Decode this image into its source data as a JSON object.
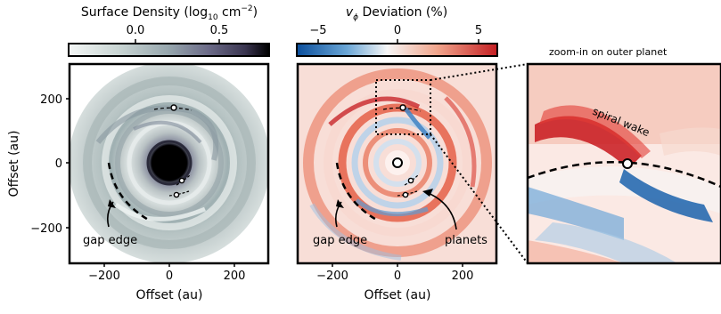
{
  "panel_left": {
    "colorbar_title": "Surface Density (log",
    "colorbar_title_sub": "10",
    "colorbar_title_unit": " cm",
    "colorbar_title_sup": "−2",
    "colorbar_title_end": ")",
    "colorbar_ticks": [
      "0.0",
      "0.5"
    ],
    "colormap": [
      "#f4f7f6",
      "#c9d5d3",
      "#96a6ad",
      "#6b6a87",
      "#3a3550",
      "#000000"
    ],
    "xlabel": "Offset (au)",
    "ylabel": "Offset (au)",
    "xticks": [
      "−200",
      "0",
      "200"
    ],
    "yticks": [
      "200",
      "0",
      "−200"
    ],
    "annotation_gap": "gap edge"
  },
  "panel_middle": {
    "colorbar_title_symbol": "v",
    "colorbar_title_sub": "ϕ",
    "colorbar_title_rest": " Deviation (%)",
    "colorbar_ticks": [
      "−5",
      "0",
      "5"
    ],
    "colormap": [
      "#0b4f9c",
      "#6aa6d6",
      "#f6f6f6",
      "#f1a58c",
      "#c41e22"
    ],
    "xlabel": "Offset (au)",
    "xticks": [
      "−200",
      "0",
      "200"
    ],
    "annotation_gap": "gap edge",
    "annotation_planets": "planets"
  },
  "panel_right": {
    "title": "zoom-in on outer planet",
    "annotation_wake": "spiral wake"
  }
}
